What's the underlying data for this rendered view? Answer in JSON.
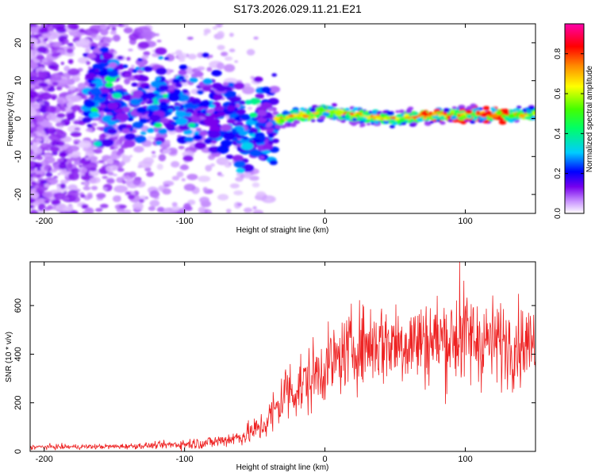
{
  "title": "S173.2026.029.11.21.E21",
  "colors": {
    "snr_line": "#ee2222",
    "axis": "#000000",
    "background": "#ffffff"
  },
  "chart_data": [
    {
      "type": "heatmap",
      "title": "S173.2026.029.11.21.E21",
      "xlabel": "Height of straight line (km)",
      "ylabel": "Frequency (Hz)",
      "xlim": [
        -210,
        150
      ],
      "ylim": [
        -25,
        25
      ],
      "xticks": [
        -200,
        -100,
        0,
        100
      ],
      "yticks": [
        -20,
        -10,
        0,
        10,
        20
      ],
      "ridge": {
        "description_points_x": [
          -160,
          -120,
          -100,
          -80,
          -60,
          -50,
          -40,
          -30,
          -20,
          -10,
          0,
          20,
          50,
          80,
          110,
          140,
          150
        ],
        "description_points_y": [
          6,
          4,
          3,
          2,
          -2,
          -3,
          -1,
          0,
          1,
          1,
          2,
          1,
          0,
          1,
          1,
          1,
          1
        ]
      },
      "colorbar": {
        "label": "Normalized spectral amplitude",
        "range": [
          0.0,
          0.95
        ],
        "ticks": [
          0.0,
          0.2,
          0.4,
          0.6,
          0.8
        ],
        "tick_labels": [
          "0.0",
          "0.2",
          "0.4",
          "0.6",
          "0.8"
        ],
        "colormap": [
          "#ffffff",
          "#cc99ff",
          "#7700ee",
          "#0000ff",
          "#00ccff",
          "#00ff66",
          "#44ff00",
          "#ffff00",
          "#ff8800",
          "#ff0000",
          "#ff00aa"
        ]
      }
    },
    {
      "type": "line",
      "xlabel": "Height of straight line (km)",
      "ylabel": "SNR (10 * v/v)",
      "xlim": [
        -210,
        150
      ],
      "ylim": [
        0,
        780
      ],
      "xticks": [
        -200,
        -100,
        0,
        100
      ],
      "yticks": [
        0,
        200,
        400,
        600
      ],
      "series": [
        {
          "name": "SNR",
          "envelope_x": [
            -210,
            -150,
            -120,
            -100,
            -80,
            -60,
            -45,
            -35,
            -28,
            -20,
            -10,
            0,
            10,
            20,
            40,
            60,
            80,
            100,
            120,
            150
          ],
          "mean_y": [
            18,
            20,
            25,
            30,
            38,
            60,
            100,
            170,
            250,
            260,
            300,
            350,
            380,
            430,
            450,
            450,
            460,
            470,
            450,
            440
          ],
          "spread": [
            12,
            12,
            15,
            25,
            30,
            40,
            70,
            120,
            150,
            150,
            160,
            160,
            160,
            180,
            200,
            200,
            210,
            230,
            200,
            180
          ],
          "peak_y": 780,
          "peak_x": 96
        }
      ]
    }
  ]
}
